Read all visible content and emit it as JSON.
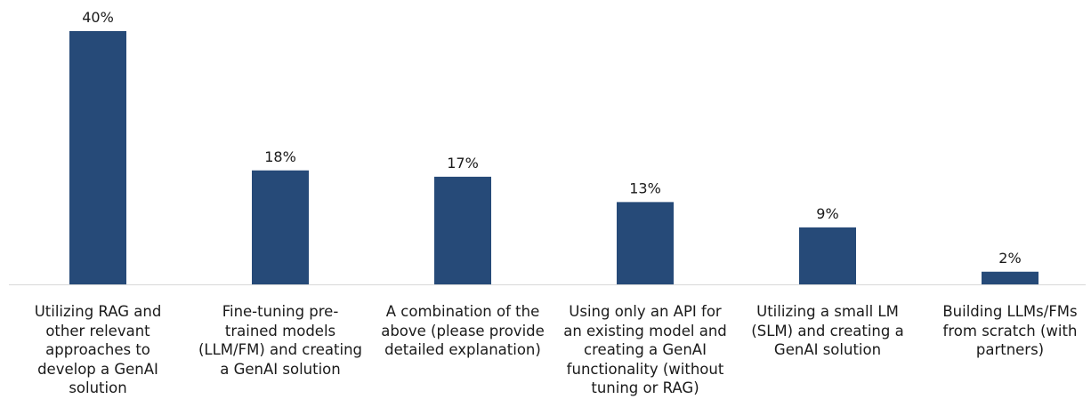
{
  "chart_data": {
    "type": "bar",
    "categories": [
      "Utilizing RAG and other relevant approaches to develop a GenAI solution",
      "Fine-tuning pre-trained models (LLM/FM) and creating a GenAI solution",
      "A combination of the above (please provide detailed explanation)",
      "Using only an API for an existing model and creating a GenAI functionality (without tuning or RAG)",
      "Utilizing a small LM (SLM) and creating a GenAI solution",
      "Building LLMs/FMs from scratch (with partners)"
    ],
    "category_lines": [
      [
        "Utilizing RAG and",
        "other relevant",
        "approaches to",
        "develop a GenAI",
        "solution"
      ],
      [
        "Fine-tuning pre-",
        "trained models",
        "(LLM/FM) and creating",
        "a GenAI solution"
      ],
      [
        "A combination of the",
        "above (please provide",
        "detailed explanation)"
      ],
      [
        "Using only an API for",
        "an existing model and",
        "creating a GenAI",
        "functionality (without",
        "tuning or RAG)"
      ],
      [
        "Utilizing a small LM",
        "(SLM) and creating a",
        "GenAI solution"
      ],
      [
        "Building LLMs/FMs",
        "from scratch (with",
        "partners)"
      ]
    ],
    "values": [
      40,
      18,
      17,
      13,
      9,
      2
    ],
    "data_labels": [
      "40%",
      "18%",
      "17%",
      "13%",
      "9%",
      "2%"
    ],
    "unit": "%",
    "ylim": [
      0,
      40
    ],
    "grid": false,
    "colors": {
      "bar": "#264a78",
      "baseline": "#d9d9d9",
      "text": "#1a1a1a"
    }
  }
}
